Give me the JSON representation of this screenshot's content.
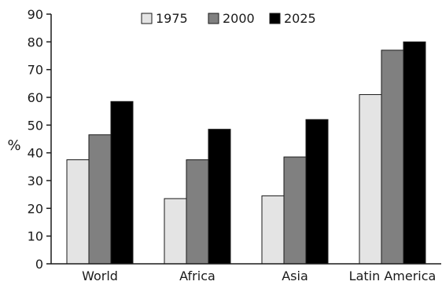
{
  "chart_data": {
    "type": "bar",
    "title": "",
    "xlabel": "",
    "ylabel": "%",
    "ylim": [
      0,
      90
    ],
    "yticks": [
      0,
      10,
      20,
      30,
      40,
      50,
      60,
      70,
      80,
      90
    ],
    "grid": false,
    "legend_position": "top-center",
    "categories": [
      "World",
      "Africa",
      "Asia",
      "Latin America"
    ],
    "series": [
      {
        "name": "1975",
        "color": "#e4e4e4",
        "values": [
          37.5,
          23.5,
          24.5,
          61
        ]
      },
      {
        "name": "2000",
        "color": "#808080",
        "values": [
          46.5,
          37.5,
          38.5,
          77
        ]
      },
      {
        "name": "2025",
        "color": "#000000",
        "values": [
          58.5,
          48.5,
          52,
          80
        ]
      }
    ]
  }
}
